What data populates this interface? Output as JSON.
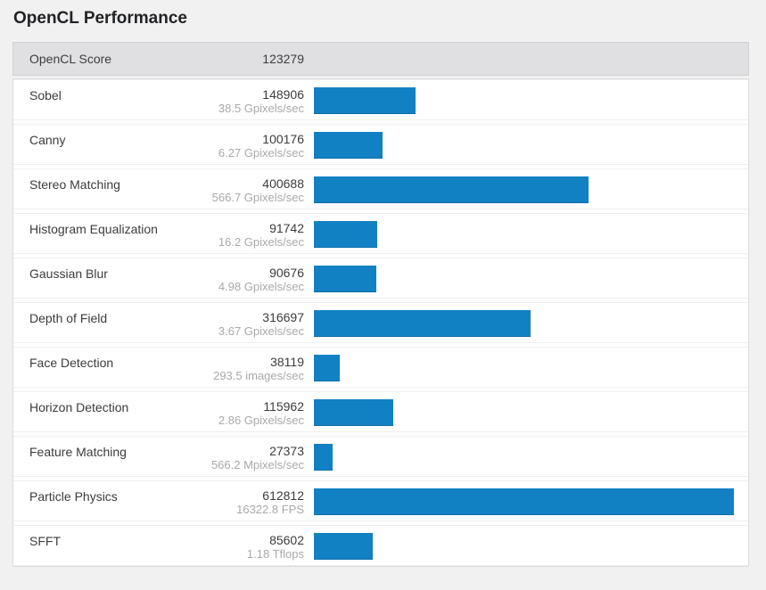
{
  "title": "OpenCL Performance",
  "header": {
    "label": "OpenCL Score",
    "score": "123279"
  },
  "colors": {
    "bar_blue": "#1281c3",
    "header_bg": "#e0e0e2",
    "page_bg": "#f1f1f2",
    "row_bg": "#ffffff",
    "label_text": "#3c3c3e",
    "rate_text": "#a9a9ab"
  },
  "rows": [
    {
      "name": "Sobel",
      "score": "148906",
      "rate": "38.5 Gpixels/sec"
    },
    {
      "name": "Canny",
      "score": "100176",
      "rate": "6.27 Gpixels/sec"
    },
    {
      "name": "Stereo Matching",
      "score": "400688",
      "rate": "566.7 Gpixels/sec"
    },
    {
      "name": "Histogram Equalization",
      "score": "91742",
      "rate": "16.2 Gpixels/sec"
    },
    {
      "name": "Gaussian Blur",
      "score": "90676",
      "rate": "4.98 Gpixels/sec"
    },
    {
      "name": "Depth of Field",
      "score": "316697",
      "rate": "3.67 Gpixels/sec"
    },
    {
      "name": "Face Detection",
      "score": "38119",
      "rate": "293.5 images/sec"
    },
    {
      "name": "Horizon Detection",
      "score": "115962",
      "rate": "2.86 Gpixels/sec"
    },
    {
      "name": "Feature Matching",
      "score": "27373",
      "rate": "566.2 Mpixels/sec"
    },
    {
      "name": "Particle Physics",
      "score": "612812",
      "rate": "16322.8 FPS"
    },
    {
      "name": "SFFT",
      "score": "85602",
      "rate": "1.18 Tflops"
    }
  ],
  "chart_data": {
    "type": "bar",
    "orientation": "horizontal",
    "title": "OpenCL Performance",
    "overall_label": "OpenCL Score",
    "overall_score": 123279,
    "categories": [
      "Sobel",
      "Canny",
      "Stereo Matching",
      "Histogram Equalization",
      "Gaussian Blur",
      "Depth of Field",
      "Face Detection",
      "Horizon Detection",
      "Feature Matching",
      "Particle Physics",
      "SFFT"
    ],
    "values": [
      148906,
      100176,
      400688,
      91742,
      90676,
      316697,
      38119,
      115962,
      27373,
      612812,
      85602
    ],
    "value_labels": [
      "38.5 Gpixels/sec",
      "6.27 Gpixels/sec",
      "566.7 Gpixels/sec",
      "16.2 Gpixels/sec",
      "4.98 Gpixels/sec",
      "3.67 Gpixels/sec",
      "293.5 images/sec",
      "2.86 Gpixels/sec",
      "566.2 Mpixels/sec",
      "16322.8 FPS",
      "1.18 Tflops"
    ],
    "xlim": [
      0,
      612812
    ],
    "grid": false,
    "legend": false,
    "bar_color": "#1281c3"
  }
}
